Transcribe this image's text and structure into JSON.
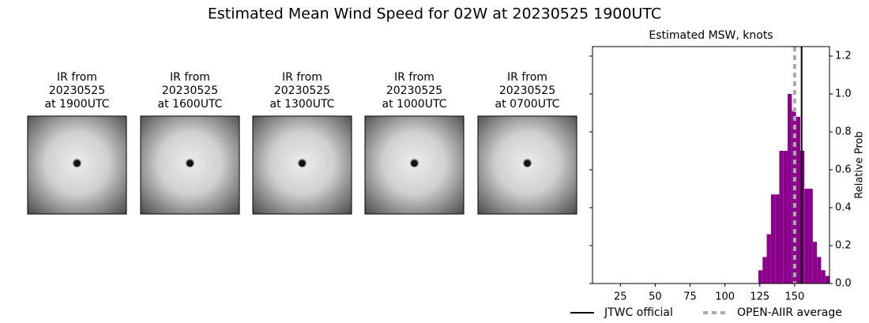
{
  "title": "Estimated Mean Wind Speed for 02W at 20230525 1900UTC",
  "panels": [
    {
      "lines": [
        "IR from",
        "20230525",
        "at 1900UTC"
      ]
    },
    {
      "lines": [
        "IR from",
        "20230525",
        "at 1600UTC"
      ]
    },
    {
      "lines": [
        "IR from",
        "20230525",
        "at 1300UTC"
      ]
    },
    {
      "lines": [
        "IR from",
        "20230525",
        "at 1000UTC"
      ]
    },
    {
      "lines": [
        "IR from",
        "20230525",
        "at 0700UTC"
      ]
    }
  ],
  "chart_data": {
    "type": "histogram",
    "title": "Estimated MSW, knots",
    "y_label": "Relative Prob",
    "color": "#8b008b",
    "bins": [
      124,
      127,
      130,
      133,
      136,
      139,
      142,
      145,
      148,
      151,
      154,
      157,
      160,
      163,
      166,
      169,
      172,
      175
    ],
    "values": [
      0.07,
      0.14,
      0.26,
      0.47,
      0.47,
      0.7,
      0.7,
      1.0,
      0.91,
      0.88,
      0.7,
      0.5,
      0.5,
      0.22,
      0.14,
      0.07,
      0.04
    ],
    "xlim": [
      5,
      175
    ],
    "xticks": [
      25,
      50,
      75,
      100,
      125,
      150
    ],
    "ylim": [
      0,
      1.25
    ],
    "yticks": [
      {
        "value": 0,
        "label": "0.0"
      },
      0.2,
      0.4,
      0.6,
      0.8,
      {
        "value": 1,
        "label": "1.0"
      },
      1.2
    ],
    "reference_lines": [
      {
        "name": "JTWC official",
        "value": 155,
        "color": "#000000",
        "style": "solid"
      },
      {
        "name": "OPEN-AIIR average",
        "value": 150,
        "color": "#aaaaaa",
        "style": "dotted"
      }
    ]
  }
}
